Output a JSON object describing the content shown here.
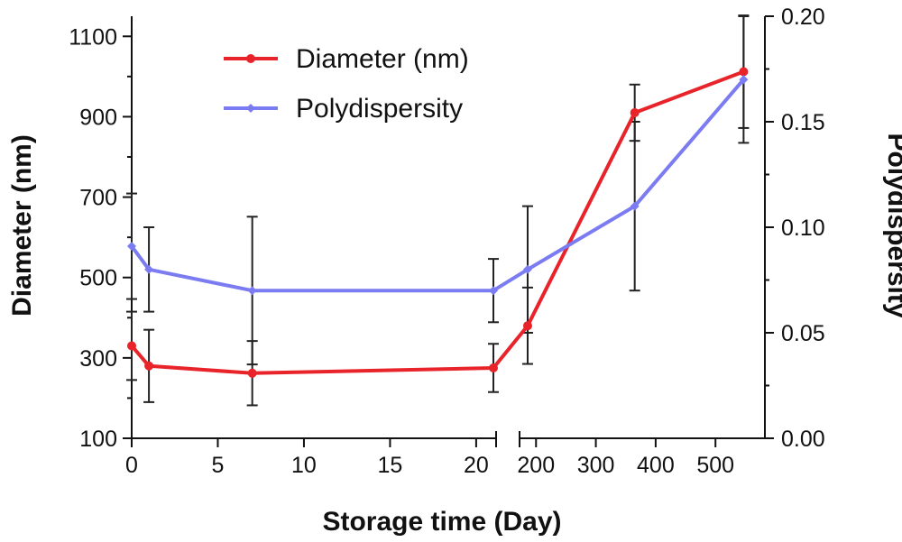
{
  "chart_data": {
    "type": "line",
    "xlabel": "Storage time (Day)",
    "ylabel_left": "Diameter (nm)",
    "ylabel_right": "Polydispersity",
    "x_segments": [
      {
        "range": [
          0,
          21
        ],
        "ticks": [
          0,
          5,
          10,
          15,
          20
        ]
      },
      {
        "range": [
          180,
          560
        ],
        "ticks": [
          200,
          300,
          400,
          500
        ]
      }
    ],
    "ylim_left": [
      100,
      1150
    ],
    "yticks_left": [
      100,
      300,
      500,
      700,
      900,
      1100
    ],
    "ylim_right": [
      0.0,
      0.2
    ],
    "yticks_right": [
      "0.00",
      "0.05",
      "0.10",
      "0.15",
      "0.20"
    ],
    "legend_position": "top-left",
    "grid": false,
    "series": [
      {
        "name": "Diameter (nm)",
        "axis": "left",
        "color": "#e8242a",
        "marker": "circle",
        "points": [
          {
            "x": 0,
            "y": 330,
            "err": 85
          },
          {
            "x": 1,
            "y": 280,
            "err": 90
          },
          {
            "x": 7,
            "y": 262,
            "err": 80
          },
          {
            "x": 21,
            "y": 275,
            "err": 60
          },
          {
            "x": 186,
            "y": 380,
            "err": 95
          },
          {
            "x": 365,
            "y": 910,
            "err": 70
          },
          {
            "x": 547,
            "y": 1012,
            "err": 140
          }
        ]
      },
      {
        "name": "Polydispersity",
        "axis": "right",
        "color": "#7b7bf2",
        "marker": "diamond",
        "points": [
          {
            "x": 0,
            "y": 0.091,
            "err": 0.025
          },
          {
            "x": 1,
            "y": 0.08,
            "err": 0.02
          },
          {
            "x": 7,
            "y": 0.07,
            "err": 0.035
          },
          {
            "x": 21,
            "y": 0.07,
            "err": 0.015
          },
          {
            "x": 186,
            "y": 0.08,
            "err": 0.03
          },
          {
            "x": 365,
            "y": 0.11,
            "err": 0.04
          },
          {
            "x": 547,
            "y": 0.17,
            "err": 0.03
          }
        ]
      }
    ]
  }
}
